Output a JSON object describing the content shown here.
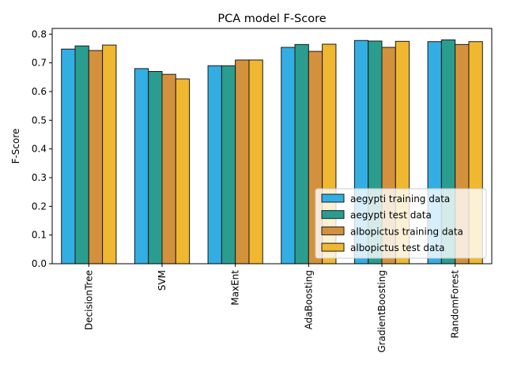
{
  "chart_data": {
    "type": "bar",
    "title": "PCA model F-Score",
    "xlabel": "",
    "ylabel": "F-Score",
    "ylim": [
      0,
      0.82
    ],
    "yticks": [
      0.0,
      0.1,
      0.2,
      0.3,
      0.4,
      0.5,
      0.6,
      0.7,
      0.8
    ],
    "ytick_labels": [
      "0.0",
      "0.1",
      "0.2",
      "0.3",
      "0.4",
      "0.5",
      "0.6",
      "0.7",
      "0.8"
    ],
    "categories": [
      "DecisionTree",
      "SVM",
      "MaxEnt",
      "AdaBoosting",
      "GradientBoosting",
      "RandomForest"
    ],
    "series": [
      {
        "name": "aegypti training data",
        "color": "#33aee3",
        "values": [
          0.748,
          0.68,
          0.69,
          0.754,
          0.778,
          0.774
        ]
      },
      {
        "name": "aegypti test data",
        "color": "#2a9d8f",
        "values": [
          0.759,
          0.67,
          0.69,
          0.764,
          0.776,
          0.78
        ]
      },
      {
        "name": "albopictus training data",
        "color": "#d4913d",
        "values": [
          0.743,
          0.66,
          0.71,
          0.74,
          0.754,
          0.764
        ]
      },
      {
        "name": "albopictus test data",
        "color": "#f0b830",
        "values": [
          0.762,
          0.644,
          0.71,
          0.765,
          0.775,
          0.774
        ]
      }
    ],
    "grid": false,
    "legend_position": "lower-right"
  }
}
